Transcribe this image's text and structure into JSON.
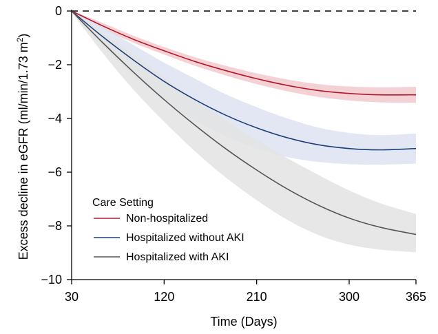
{
  "chart_data": {
    "type": "line",
    "title": "",
    "xlabel": "Time (Days)",
    "ylabel_main": "Excess decline in eGFR (ml/min/1.73 m",
    "ylabel_sup": "2",
    "ylabel_close": ")",
    "xlim": [
      30,
      365
    ],
    "ylim": [
      -10,
      0
    ],
    "x_ticks": [
      30,
      120,
      210,
      300,
      365
    ],
    "x_tick_labels": [
      "30",
      "120",
      "210",
      "300",
      "365"
    ],
    "y_ticks": [
      0,
      -2,
      -4,
      -6,
      -8,
      -10
    ],
    "y_tick_labels": [
      "0",
      "−2",
      "−4",
      "−6",
      "−8",
      "−10"
    ],
    "reference_line": {
      "y": 0,
      "style": "dashed",
      "color": "#000000"
    },
    "grid": false,
    "legend": {
      "title": "Care Setting",
      "position": "bottom-left"
    },
    "x": [
      30,
      60,
      90,
      120,
      150,
      180,
      210,
      240,
      270,
      300,
      330,
      365
    ],
    "series": [
      {
        "name": "Non-hospitalized",
        "color": "#b2182b",
        "band_color": "#f1c9cd",
        "values": [
          0,
          -0.55,
          -1.05,
          -1.48,
          -1.88,
          -2.22,
          -2.52,
          -2.77,
          -2.96,
          -3.07,
          -3.12,
          -3.12
        ],
        "lower": [
          -0.02,
          -0.66,
          -1.18,
          -1.62,
          -2.04,
          -2.4,
          -2.72,
          -2.99,
          -3.2,
          -3.33,
          -3.4,
          -3.42
        ],
        "upper": [
          0.02,
          -0.44,
          -0.92,
          -1.34,
          -1.72,
          -2.04,
          -2.32,
          -2.55,
          -2.72,
          -2.81,
          -2.84,
          -2.82
        ]
      },
      {
        "name": "Hospitalized without AKI",
        "color": "#1f3e78",
        "band_color": "#dde3f1",
        "values": [
          0,
          -0.95,
          -1.82,
          -2.62,
          -3.3,
          -3.88,
          -4.35,
          -4.72,
          -4.98,
          -5.12,
          -5.17,
          -5.12
        ],
        "lower": [
          -0.05,
          -1.3,
          -2.4,
          -3.32,
          -4.08,
          -4.66,
          -5.12,
          -5.44,
          -5.62,
          -5.7,
          -5.72,
          -5.68
        ],
        "upper": [
          0.05,
          -0.6,
          -1.26,
          -1.92,
          -2.52,
          -3.1,
          -3.58,
          -4.0,
          -4.34,
          -4.54,
          -4.62,
          -4.56
        ]
      },
      {
        "name": "Hospitalized with AKI",
        "color": "#555555",
        "band_color": "#e3e3e3",
        "values": [
          0,
          -1.17,
          -2.27,
          -3.3,
          -4.25,
          -5.13,
          -5.92,
          -6.63,
          -7.23,
          -7.71,
          -8.05,
          -8.32
        ],
        "lower": [
          -0.05,
          -1.55,
          -2.92,
          -4.12,
          -5.22,
          -6.2,
          -7.04,
          -7.78,
          -8.34,
          -8.7,
          -8.88,
          -8.98
        ],
        "upper": [
          0.05,
          -0.8,
          -1.62,
          -2.48,
          -3.3,
          -4.08,
          -4.8,
          -5.48,
          -6.1,
          -6.68,
          -7.15,
          -7.56
        ]
      }
    ]
  }
}
